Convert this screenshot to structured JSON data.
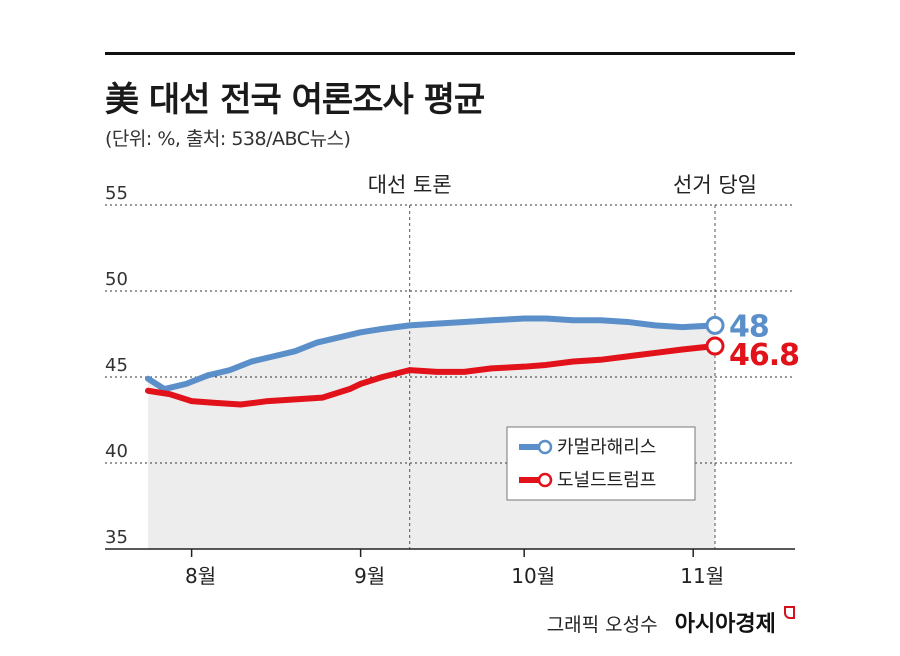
{
  "header": {
    "title": "美 대선 전국 여론조사 평균",
    "subtitle": "(단위: %, 출처: 538/ABC뉴스)"
  },
  "footer": {
    "credit": "그래픽 오성수",
    "brand": "아시아경제"
  },
  "colors": {
    "harris": "#5b8fc9",
    "trump": "#e2121b",
    "area": "#ededed",
    "grid": "#333333"
  },
  "chart_data": {
    "type": "line",
    "title": "美 대선 전국 여론조사 평균",
    "ylim": [
      35,
      55
    ],
    "yticks": [
      55,
      50,
      45,
      40,
      35
    ],
    "grid": "horizontal dotted",
    "x_range": [
      "07-24",
      "11-05"
    ],
    "xticks": [
      {
        "label": "8월",
        "date": "08-01"
      },
      {
        "label": "9월",
        "date": "09-01"
      },
      {
        "label": "10월",
        "date": "10-01"
      },
      {
        "label": "11월",
        "date": "11-01"
      }
    ],
    "annotations": [
      {
        "label": "대선 토론",
        "date": "09-10"
      },
      {
        "label": "선거 당일",
        "date": "11-05"
      }
    ],
    "legend_position": "bottom-right",
    "series": [
      {
        "name": "카멀라해리스",
        "end_label": "48",
        "points": [
          [
            "07-24",
            44.9
          ],
          [
            "07-27",
            44.3
          ],
          [
            "07-31",
            44.6
          ],
          [
            "08-04",
            45.1
          ],
          [
            "08-08",
            45.4
          ],
          [
            "08-12",
            45.9
          ],
          [
            "08-16",
            46.2
          ],
          [
            "08-20",
            46.5
          ],
          [
            "08-24",
            47.0
          ],
          [
            "08-28",
            47.3
          ],
          [
            "09-01",
            47.6
          ],
          [
            "09-05",
            47.8
          ],
          [
            "09-10",
            48.0
          ],
          [
            "09-15",
            48.1
          ],
          [
            "09-20",
            48.2
          ],
          [
            "09-25",
            48.3
          ],
          [
            "10-01",
            48.4
          ],
          [
            "10-05",
            48.4
          ],
          [
            "10-10",
            48.3
          ],
          [
            "10-15",
            48.3
          ],
          [
            "10-20",
            48.2
          ],
          [
            "10-25",
            48.0
          ],
          [
            "10-30",
            47.9
          ],
          [
            "11-05",
            48.0
          ]
        ]
      },
      {
        "name": "도널드트럼프",
        "end_label": "46.8",
        "points": [
          [
            "07-24",
            44.2
          ],
          [
            "07-28",
            44.0
          ],
          [
            "08-01",
            43.6
          ],
          [
            "08-05",
            43.5
          ],
          [
            "08-10",
            43.4
          ],
          [
            "08-15",
            43.6
          ],
          [
            "08-20",
            43.7
          ],
          [
            "08-25",
            43.8
          ],
          [
            "08-30",
            44.3
          ],
          [
            "09-01",
            44.6
          ],
          [
            "09-05",
            45.0
          ],
          [
            "09-10",
            45.4
          ],
          [
            "09-15",
            45.3
          ],
          [
            "09-20",
            45.3
          ],
          [
            "09-25",
            45.5
          ],
          [
            "10-01",
            45.6
          ],
          [
            "10-05",
            45.7
          ],
          [
            "10-10",
            45.9
          ],
          [
            "10-15",
            46.0
          ],
          [
            "10-20",
            46.2
          ],
          [
            "10-25",
            46.4
          ],
          [
            "10-30",
            46.6
          ],
          [
            "11-05",
            46.8
          ]
        ]
      }
    ]
  }
}
